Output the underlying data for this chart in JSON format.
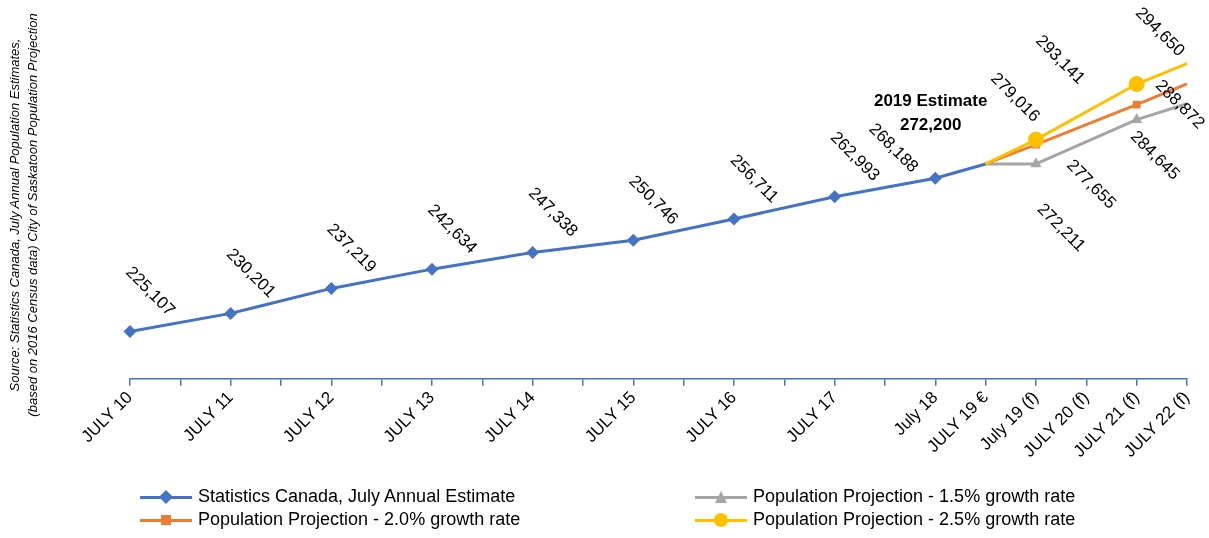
{
  "chart_data": {
    "type": "line",
    "categories": [
      "JULY 10",
      null,
      "JULY 11",
      null,
      "JULY 12",
      null,
      "JULY 13",
      null,
      "JULY 14",
      null,
      "JULY 15",
      null,
      "JULY 16",
      null,
      "JULY 17",
      null,
      "July 18",
      "JULY 19 €",
      "July 19 (f)",
      "JULY 20 (f)",
      "JULY 21 (f)",
      "JULY 22 (f)"
    ],
    "series": [
      {
        "name": "Statistics Canada, July Annual Estimate",
        "color": "#4472c4",
        "marker": "diamond",
        "values": [
          225107,
          null,
          230201,
          null,
          237219,
          null,
          242634,
          null,
          247338,
          null,
          250746,
          null,
          256711,
          null,
          262993,
          null,
          268188,
          272200,
          null,
          null,
          null,
          null
        ],
        "value_labels": [
          "225,107",
          null,
          "230,201",
          null,
          "237,219",
          null,
          "242,634",
          null,
          "247,338",
          null,
          "250,746",
          null,
          "256,711",
          null,
          "262,993",
          null,
          "268,188",
          null,
          null,
          null,
          null,
          null
        ]
      },
      {
        "name": "Population Projection - 1.5% growth rate",
        "color": "#a5a5a5",
        "marker": "triangle",
        "values": [
          null,
          null,
          null,
          null,
          null,
          null,
          null,
          null,
          null,
          null,
          null,
          null,
          null,
          null,
          null,
          null,
          null,
          272200,
          272211,
          null,
          284645,
          289100
        ],
        "value_labels": [
          null,
          null,
          null,
          null,
          null,
          null,
          null,
          null,
          null,
          null,
          null,
          null,
          null,
          null,
          null,
          null,
          null,
          null,
          "272,211",
          null,
          "284,645",
          null
        ]
      },
      {
        "name": "Population Projection - 2.0% growth rate",
        "color": "#ed7d31",
        "marker": "square",
        "values": [
          null,
          null,
          null,
          null,
          null,
          null,
          null,
          null,
          null,
          null,
          null,
          null,
          null,
          null,
          null,
          null,
          null,
          272200,
          277655,
          null,
          288872,
          294700
        ],
        "value_labels": [
          null,
          null,
          null,
          null,
          null,
          null,
          null,
          null,
          null,
          null,
          null,
          null,
          null,
          null,
          null,
          null,
          null,
          null,
          "277,655",
          null,
          "288,872",
          null
        ]
      },
      {
        "name": "Population Projection - 2.5% growth rate",
        "color": "#ffc000",
        "marker": "circle",
        "values": [
          null,
          null,
          null,
          null,
          null,
          null,
          null,
          null,
          null,
          null,
          null,
          null,
          null,
          null,
          null,
          null,
          null,
          272200,
          279016,
          null,
          294650,
          300400
        ],
        "value_labels": [
          null,
          null,
          null,
          null,
          null,
          null,
          null,
          null,
          null,
          null,
          null,
          null,
          null,
          null,
          null,
          null,
          null,
          null,
          "279,016",
          null,
          "294,650",
          null
        ]
      }
    ],
    "annotations": [
      "Source: Statistics Canada, July Annual Population Estimates,\n(based on 2016 Census data) City of Saskatoon Population Projection",
      {
        "text": "2019 Estimate\n272,200",
        "x": "JULY 19 €",
        "y": 272200
      },
      "293,141"
    ],
    "legend": "bottom"
  }
}
